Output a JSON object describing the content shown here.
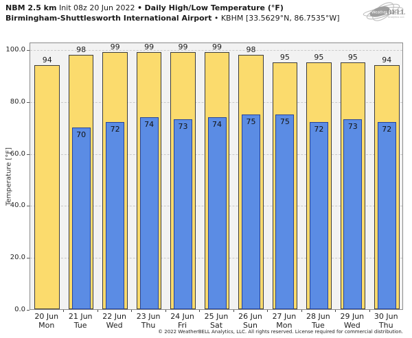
{
  "header": {
    "line1": {
      "model": "NBM 2.5 km",
      "init": "Init 08z 20 Jun 2022",
      "separator": "•",
      "product": "Daily High/Low Temperature (°F)"
    },
    "line2": {
      "station": "Birmingham-Shuttlesworth International Airport",
      "separator": "•",
      "location": "KBHM [33.5629°N, 86.7535°W]"
    },
    "logo": {
      "text_weather": "Weather",
      "text_bell": "BELL",
      "subtext": "Analytics LLC"
    }
  },
  "chart_data": {
    "type": "bar",
    "title": "Daily High/Low Temperature (°F)",
    "xlabel": "",
    "ylabel": "Temperature [°F]",
    "ylim": [
      0,
      100
    ],
    "yticks": [
      {
        "value": 0,
        "label": "0.0"
      },
      {
        "value": 20,
        "label": "20.0"
      },
      {
        "value": 40,
        "label": "40.0"
      },
      {
        "value": 60,
        "label": "60.0"
      },
      {
        "value": 80,
        "label": "80.0"
      },
      {
        "value": 100,
        "label": "100.0"
      }
    ],
    "grid": {
      "horizontal": true,
      "style": "dashed"
    },
    "legend_position": "none",
    "categories": [
      {
        "date": "20 Jun",
        "day": "Mon"
      },
      {
        "date": "21 Jun",
        "day": "Tue"
      },
      {
        "date": "22 Jun",
        "day": "Wed"
      },
      {
        "date": "23 Jun",
        "day": "Thu"
      },
      {
        "date": "24 Jun",
        "day": "Fri"
      },
      {
        "date": "25 Jun",
        "day": "Sat"
      },
      {
        "date": "26 Jun",
        "day": "Sun"
      },
      {
        "date": "27 Jun",
        "day": "Mon"
      },
      {
        "date": "28 Jun",
        "day": "Tue"
      },
      {
        "date": "29 Jun",
        "day": "Wed"
      },
      {
        "date": "30 Jun",
        "day": "Thu"
      }
    ],
    "series": [
      {
        "name": "Daily High",
        "color": "#fbdb6d",
        "border": "#3a3a3a",
        "values": [
          94,
          98,
          99,
          99,
          99,
          99,
          98,
          95,
          95,
          95,
          94
        ]
      },
      {
        "name": "Daily Low",
        "color": "#5b8ce4",
        "border": "#24429b",
        "values": [
          null,
          70,
          72,
          74,
          73,
          74,
          75,
          75,
          72,
          73,
          72
        ]
      }
    ]
  },
  "footer": {
    "copyright": "© 2022 WeatherBELL Analytics, LLC. All rights reserved. License required for commercial distribution."
  },
  "colors": {
    "page_bg": "#ffffff",
    "plot_bg": "#f2f2f2",
    "plot_border": "#8a8a8a",
    "gridline": "#c9c9c9",
    "high_fill": "#fbdb6d",
    "high_border": "#3a3a3a",
    "low_fill": "#5b8ce4",
    "low_border": "#24429b",
    "logo_gray": "#a0a0a0"
  }
}
